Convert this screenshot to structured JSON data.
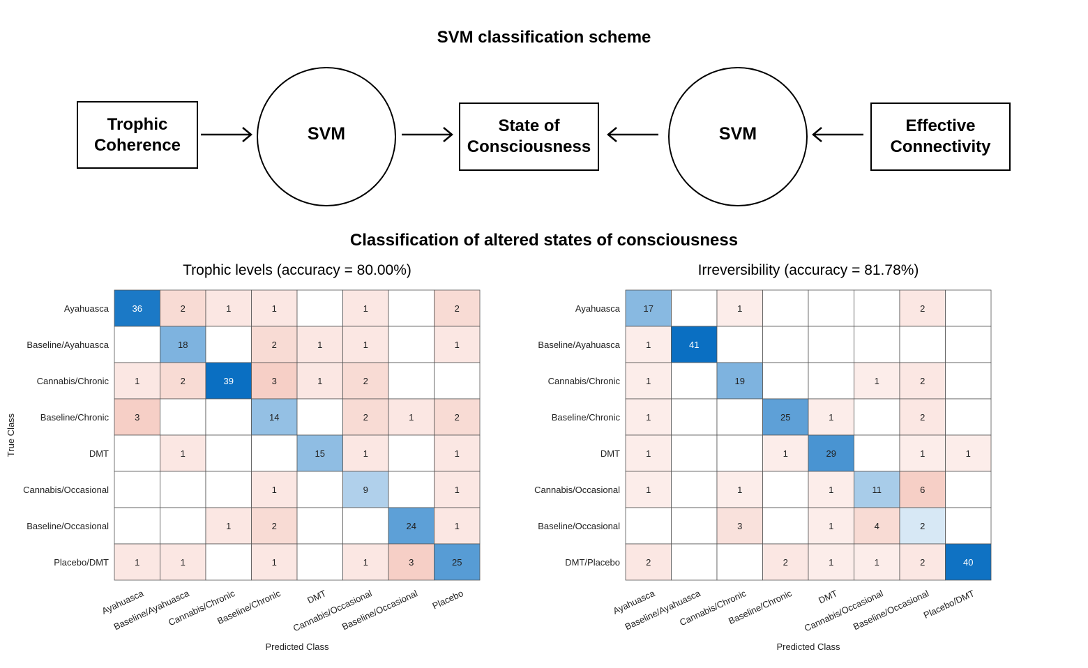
{
  "scheme": {
    "title": "SVM classification scheme",
    "nodes": {
      "trophic": "Trophic\nCoherence",
      "svm_left": "SVM",
      "state": "State of\nConsciousness",
      "svm_right": "SVM",
      "effective": "Effective\nConnectivity"
    }
  },
  "classification_title": "Classification of altered states of consciousness",
  "colors": {
    "diag": "#0a6fc2",
    "offdiag": "#e05a3a",
    "grid": "#555555"
  },
  "chart_data": [
    {
      "type": "heatmap",
      "title": "Trophic levels (accuracy = 80.00%)",
      "xlabel": "Predicted Class",
      "ylabel": "True Class",
      "rows": [
        "Ayahuasca",
        "Baseline/Ayahuasca",
        "Cannabis/Chronic",
        "Baseline/Chronic",
        "DMT",
        "Cannabis/Occasional",
        "Baseline/Occasional",
        "Placebo/DMT"
      ],
      "cols": [
        "Ayahuasca",
        "Baseline/Ayahuasca",
        "Cannabis/Chronic",
        "Baseline/Chronic",
        "DMT",
        "Cannabis/Occasional",
        "Baseline/Occasional",
        "Placebo"
      ],
      "values": [
        [
          36,
          2,
          1,
          1,
          null,
          1,
          null,
          2
        ],
        [
          null,
          18,
          null,
          2,
          1,
          1,
          null,
          1
        ],
        [
          1,
          2,
          39,
          3,
          1,
          2,
          null,
          null
        ],
        [
          3,
          null,
          null,
          14,
          null,
          2,
          1,
          2
        ],
        [
          null,
          1,
          null,
          null,
          15,
          1,
          null,
          1
        ],
        [
          null,
          null,
          null,
          1,
          null,
          9,
          null,
          1
        ],
        [
          null,
          null,
          1,
          2,
          null,
          null,
          24,
          1
        ],
        [
          1,
          1,
          null,
          1,
          null,
          1,
          3,
          25
        ]
      ]
    },
    {
      "type": "heatmap",
      "title": "Irreversibility (accuracy = 81.78%)",
      "xlabel": "Predicted Class",
      "ylabel": "",
      "rows": [
        "Ayahuasca",
        "Baseline/Ayahuasca",
        "Cannabis/Chronic",
        "Baseline/Chronic",
        "DMT",
        "Cannabis/Occasional",
        "Baseline/Occasional",
        "DMT/Placebo"
      ],
      "cols": [
        "Ayahuasca",
        "Baseline/Ayahuasca",
        "Cannabis/Chronic",
        "Baseline/Chronic",
        "DMT",
        "Cannabis/Occasional",
        "Baseline/Occasional",
        "Placebo/DMT"
      ],
      "values": [
        [
          17,
          null,
          1,
          null,
          null,
          null,
          2,
          null
        ],
        [
          1,
          41,
          null,
          null,
          null,
          null,
          null,
          null
        ],
        [
          1,
          null,
          19,
          null,
          null,
          1,
          2,
          null
        ],
        [
          1,
          null,
          null,
          25,
          1,
          null,
          2,
          null
        ],
        [
          1,
          null,
          null,
          1,
          29,
          null,
          1,
          1
        ],
        [
          1,
          null,
          1,
          null,
          1,
          11,
          6,
          null
        ],
        [
          null,
          null,
          3,
          null,
          1,
          4,
          2,
          null
        ],
        [
          2,
          null,
          null,
          2,
          1,
          1,
          2,
          40
        ]
      ]
    }
  ]
}
